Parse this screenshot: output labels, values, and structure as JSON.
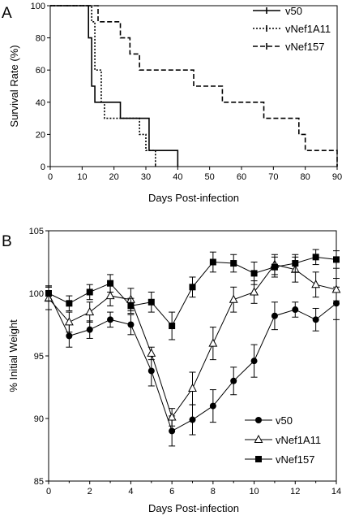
{
  "panels": [
    {
      "letter": "A"
    },
    {
      "letter": "B"
    }
  ],
  "chart_data": [
    {
      "type": "line",
      "step": true,
      "xlabel": "Days Post-infection",
      "ylabel": "Survival Rate (%)",
      "xlim": [
        0,
        90
      ],
      "ylim": [
        0,
        100
      ],
      "xticks": [
        0,
        10,
        20,
        30,
        40,
        50,
        60,
        70,
        80,
        90
      ],
      "yticks": [
        0,
        20,
        40,
        60,
        80,
        100
      ],
      "legend": "top-right",
      "series": [
        {
          "name": "v50",
          "line": "solid",
          "color": "#000000",
          "x": [
            0,
            12,
            13,
            14,
            17,
            22,
            31,
            40
          ],
          "y": [
            100,
            80,
            50,
            40,
            40,
            30,
            10,
            0
          ]
        },
        {
          "name": "vNef1A11",
          "line": "dotted",
          "color": "#000000",
          "x": [
            0,
            13,
            14,
            16,
            17,
            24,
            28,
            30,
            33
          ],
          "y": [
            100,
            90,
            60,
            40,
            30,
            30,
            20,
            10,
            0
          ]
        },
        {
          "name": "vNef157",
          "line": "dashed",
          "color": "#000000",
          "x": [
            0,
            14,
            15,
            19,
            22,
            25,
            28,
            45,
            54,
            67,
            78,
            80,
            84,
            90
          ],
          "y": [
            100,
            100,
            90,
            90,
            80,
            70,
            60,
            50,
            40,
            30,
            20,
            10,
            10,
            0
          ]
        }
      ]
    },
    {
      "type": "line",
      "xlabel": "Days Post-infection",
      "ylabel": "% Initial Weight",
      "xlim": [
        0,
        14
      ],
      "ylim": [
        85,
        105
      ],
      "xticks": [
        0,
        2,
        4,
        6,
        8,
        10,
        12,
        14
      ],
      "yticks": [
        85,
        90,
        95,
        100,
        105
      ],
      "legend": "bottom-right",
      "series": [
        {
          "name": "v50",
          "marker": "circle",
          "color": "#000000",
          "x": [
            0,
            1,
            2,
            3,
            4,
            5,
            6,
            7,
            8,
            9,
            10,
            11,
            12,
            13,
            14
          ],
          "y": [
            100.0,
            96.6,
            97.1,
            97.9,
            97.5,
            93.8,
            89.0,
            89.9,
            91.0,
            93.0,
            94.6,
            98.2,
            98.7,
            97.9,
            99.2
          ],
          "error": [
            0.5,
            0.9,
            0.7,
            0.6,
            0.8,
            1.2,
            1.2,
            1.2,
            1.3,
            1.1,
            1.3,
            1.1,
            0.6,
            0.9,
            1.3
          ]
        },
        {
          "name": "vNef1A11",
          "marker": "open-triangle",
          "color": "#000000",
          "x": [
            0,
            1,
            2,
            3,
            4,
            5,
            6,
            7,
            8,
            9,
            10,
            11,
            12,
            13,
            14
          ],
          "y": [
            99.6,
            97.7,
            98.5,
            99.8,
            99.5,
            95.2,
            90.1,
            92.4,
            96.0,
            99.5,
            100.1,
            102.3,
            101.9,
            100.7,
            100.3
          ],
          "error": [
            0.9,
            0.8,
            0.8,
            0.8,
            0.9,
            0.5,
            0.7,
            1.3,
            1.3,
            1.0,
            0.9,
            0.8,
            1.0,
            1.0,
            0.9
          ]
        },
        {
          "name": "vNef157",
          "marker": "square",
          "color": "#000000",
          "x": [
            0,
            1,
            2,
            3,
            4,
            5,
            6,
            7,
            8,
            9,
            10,
            11,
            12,
            13,
            14
          ],
          "y": [
            100.0,
            99.2,
            100.1,
            100.8,
            99.0,
            99.3,
            97.4,
            100.5,
            102.5,
            102.4,
            101.6,
            102.1,
            102.4,
            102.9,
            102.7
          ],
          "error": [
            0.6,
            0.6,
            0.6,
            0.7,
            0.6,
            0.8,
            1.1,
            0.8,
            0.8,
            0.7,
            0.9,
            0.8,
            0.7,
            0.6,
            0.7
          ]
        }
      ]
    }
  ]
}
